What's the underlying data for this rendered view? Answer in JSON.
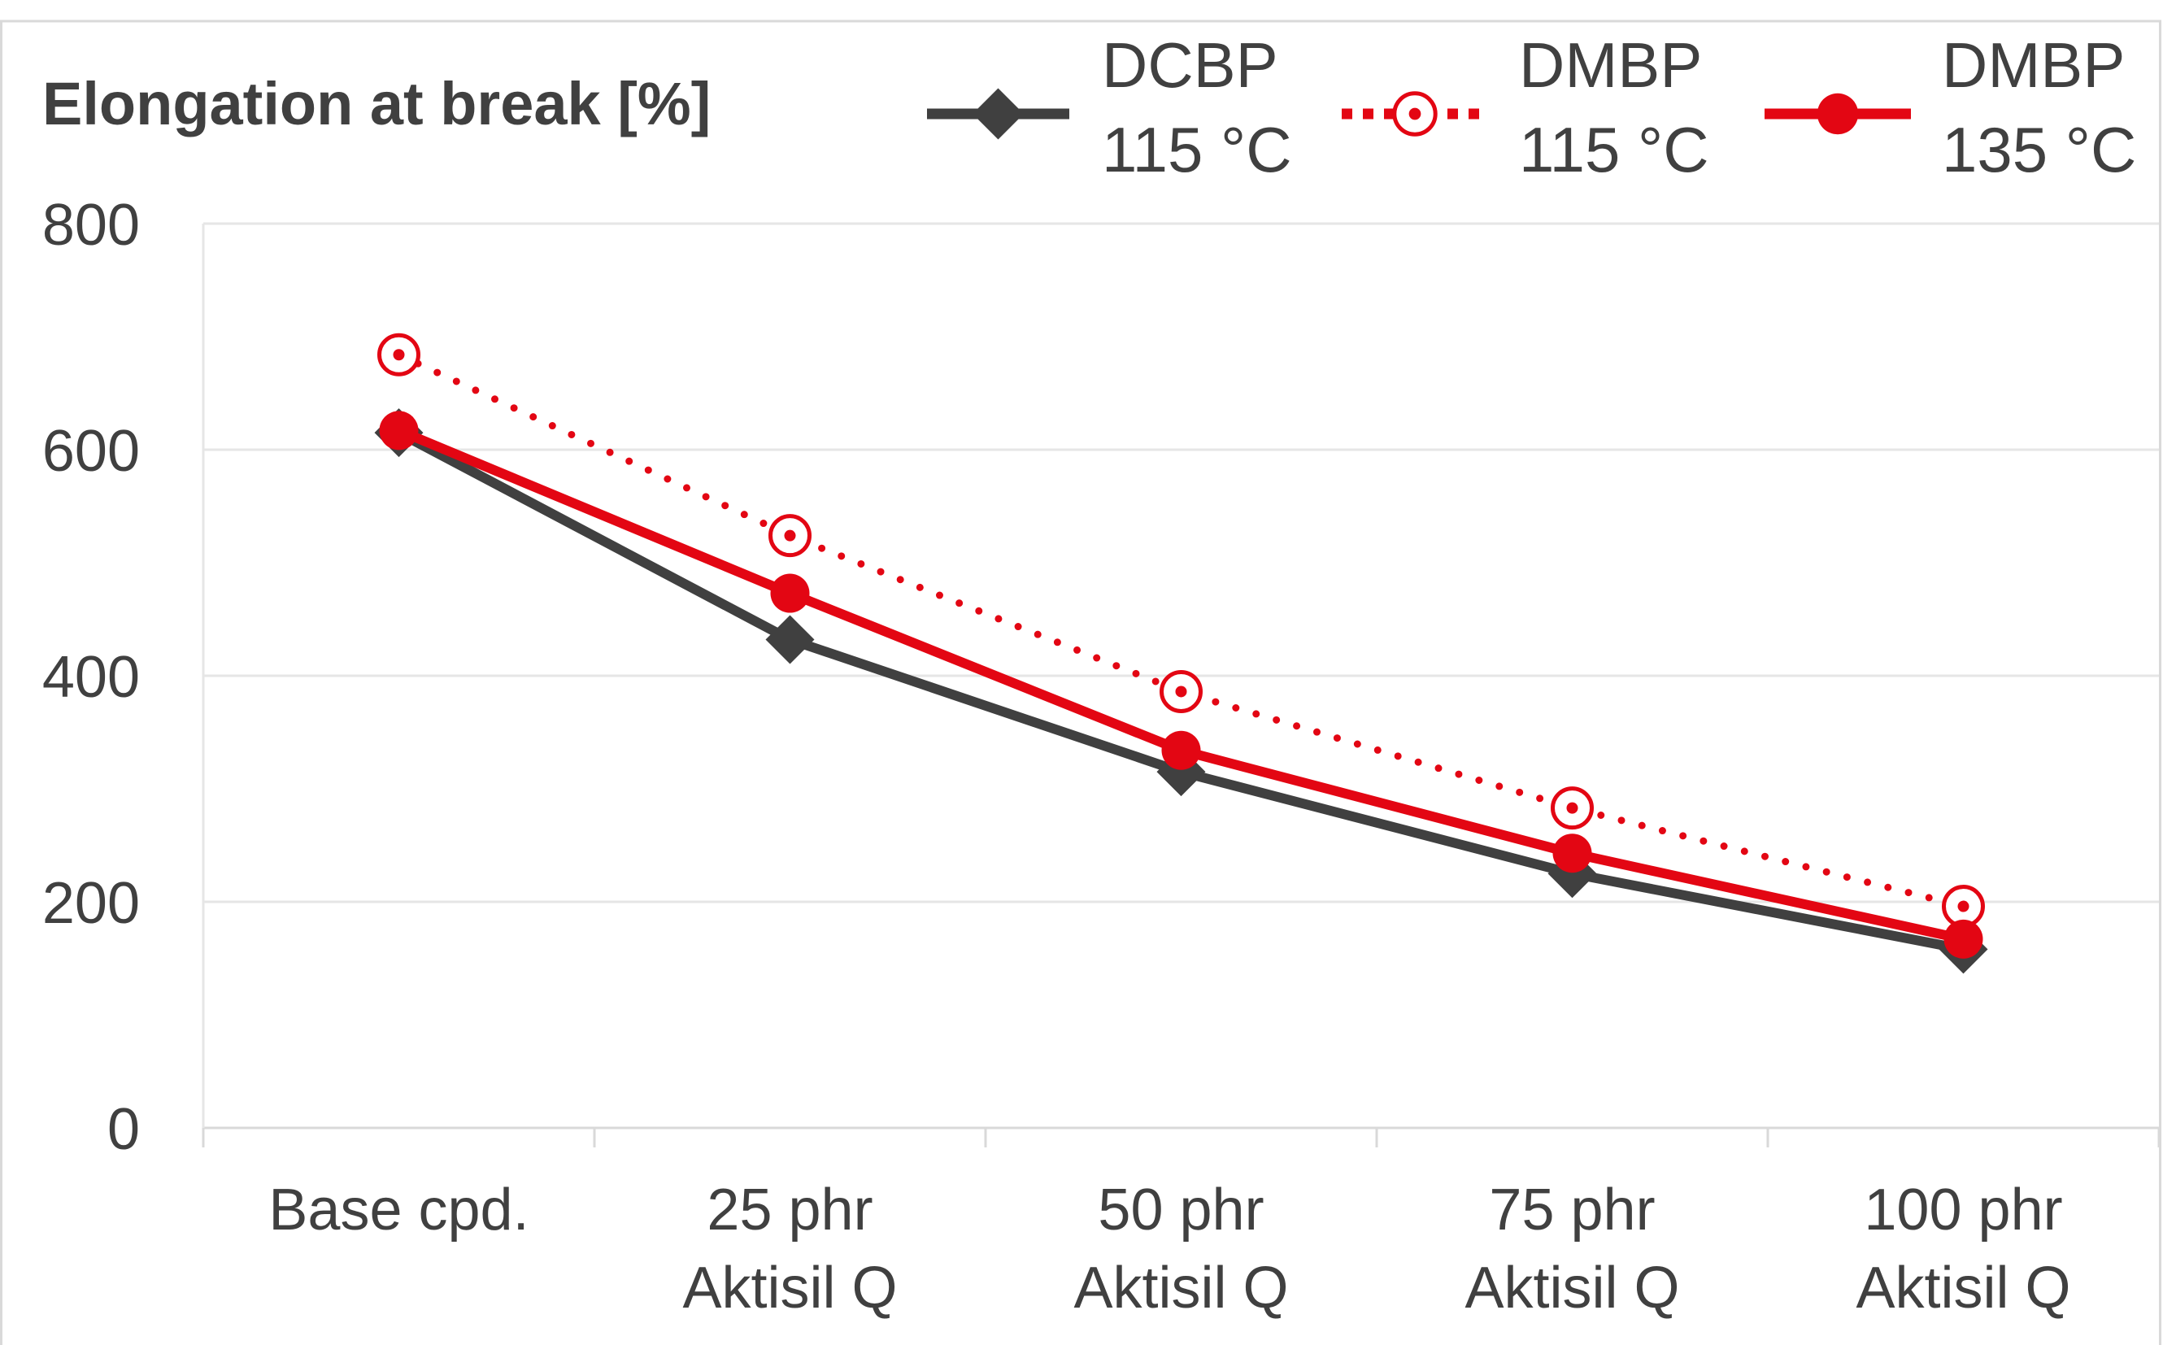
{
  "chart_data": {
    "type": "line",
    "title": "Elongation at break [%]",
    "xlabel": "",
    "ylabel": "",
    "ylim": [
      0,
      800
    ],
    "yticks": [
      "0",
      "200",
      "400",
      "600",
      "800"
    ],
    "categories": [
      [
        "Base cpd."
      ],
      [
        "25 phr",
        "Aktisil Q"
      ],
      [
        "50 phr",
        "Aktisil Q"
      ],
      [
        "75 phr",
        "Aktisil Q"
      ],
      [
        "100 phr",
        "Aktisil Q"
      ]
    ],
    "grid": true,
    "legend_position": "top-right",
    "series": [
      {
        "name": [
          "DCBP",
          "115 °C"
        ],
        "color": "#404040",
        "line_style": "solid",
        "marker": "diamond",
        "values": [
          615,
          432,
          315,
          225,
          158
        ]
      },
      {
        "name": [
          "DMBP",
          "115 °C"
        ],
        "color": "#e30613",
        "line_style": "dotted",
        "marker": "open-circle-dot",
        "values": [
          684,
          524,
          386,
          283,
          196
        ]
      },
      {
        "name": [
          "DMBP",
          "135 °C"
        ],
        "color": "#e30613",
        "line_style": "solid",
        "marker": "filled-circle",
        "values": [
          617,
          473,
          334,
          243,
          167
        ]
      }
    ]
  }
}
